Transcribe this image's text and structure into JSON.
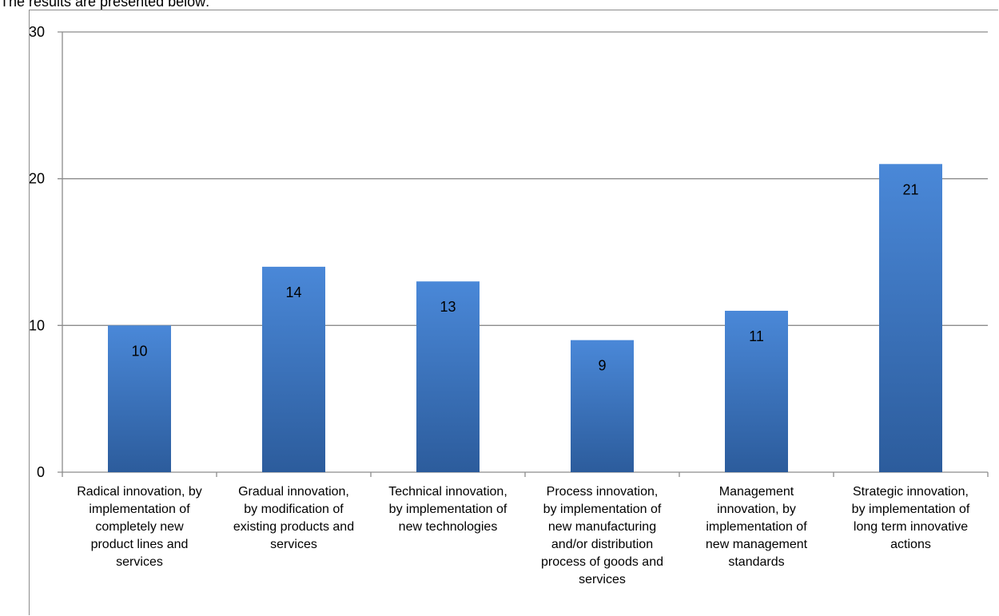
{
  "caption": "The results are presented below:",
  "colors": {
    "bar_top": "#4a88d8",
    "bar_bottom": "#2c5c9c",
    "gridline": "#8c8c8c",
    "axis": "#8c8c8c"
  },
  "chart_data": {
    "type": "bar",
    "title": "",
    "xlabel": "",
    "ylabel": "",
    "ylim": [
      0,
      30
    ],
    "yticks": [
      0,
      10,
      20,
      30
    ],
    "grid": true,
    "categories": [
      [
        "Radical innovation, by",
        "implementation of",
        "completely new",
        "product lines and",
        "services"
      ],
      [
        "Gradual innovation,",
        "by modification of",
        "existing products and",
        "services"
      ],
      [
        "Technical innovation,",
        "by implementation of",
        "new technologies"
      ],
      [
        "Process innovation,",
        "by implementation of",
        "new manufacturing",
        "and/or distribution",
        "process of goods and",
        "services"
      ],
      [
        "Management",
        "innovation, by",
        "implementation of",
        "new management",
        "standards"
      ],
      [
        "Strategic innovation,",
        "by implementation of",
        "long term innovative",
        "actions"
      ]
    ],
    "values": [
      10,
      14,
      13,
      9,
      11,
      21
    ],
    "data_labels": [
      "10",
      "14",
      "13",
      "9",
      "11",
      "21"
    ]
  }
}
